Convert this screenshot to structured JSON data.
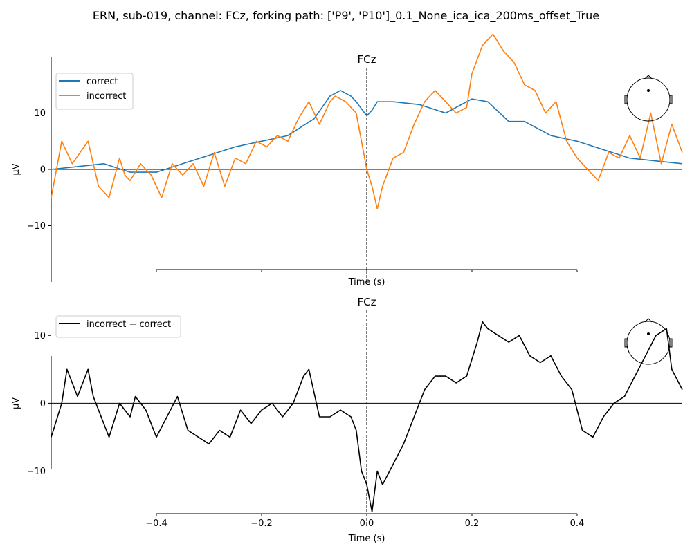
{
  "figure": {
    "suptitle": "ERN, sub-019, channel: FCz, forking path: ['P9', 'P10']_0.1_None_ica_ica_200ms_offset_True"
  },
  "chart_data": [
    {
      "type": "line",
      "title": "FCz",
      "xlabel": "Time (s)",
      "ylabel": "µV",
      "xlim": [
        -0.6,
        0.6
      ],
      "ylim": [
        -20,
        20
      ],
      "xticks": [
        -0.4,
        -0.2,
        0.0,
        0.2,
        0.4
      ],
      "xticklabels": [],
      "yticks": [
        -10,
        0,
        10
      ],
      "yticklabels": [
        "−10",
        "0",
        "10"
      ],
      "legend": "top-left",
      "markers": [
        "zero-line",
        "vertical-dashed-at-0"
      ],
      "inset": "head-sensor-map",
      "series": [
        {
          "name": "correct",
          "color": "#1f77b4",
          "x": [
            -0.6,
            -0.55,
            -0.5,
            -0.45,
            -0.4,
            -0.35,
            -0.3,
            -0.25,
            -0.2,
            -0.15,
            -0.1,
            -0.07,
            -0.05,
            -0.03,
            -0.02,
            0.0,
            0.01,
            0.02,
            0.05,
            0.1,
            0.15,
            0.2,
            0.23,
            0.27,
            0.3,
            0.35,
            0.4,
            0.45,
            0.5,
            0.55,
            0.6
          ],
          "values": [
            0.0,
            0.5,
            1.0,
            -0.5,
            -0.5,
            1.0,
            2.5,
            4.0,
            5.0,
            6.0,
            9.0,
            13.0,
            14.0,
            13.0,
            12.0,
            9.5,
            10.5,
            12.0,
            12.0,
            11.5,
            10.0,
            12.5,
            12.0,
            8.5,
            8.5,
            6.0,
            5.0,
            3.5,
            2.0,
            1.5,
            1.0
          ]
        },
        {
          "name": "incorrect",
          "color": "#ff7f0e",
          "x": [
            -0.6,
            -0.58,
            -0.56,
            -0.53,
            -0.51,
            -0.49,
            -0.47,
            -0.46,
            -0.45,
            -0.43,
            -0.41,
            -0.39,
            -0.37,
            -0.35,
            -0.33,
            -0.31,
            -0.29,
            -0.27,
            -0.25,
            -0.23,
            -0.21,
            -0.19,
            -0.17,
            -0.15,
            -0.13,
            -0.11,
            -0.09,
            -0.07,
            -0.06,
            -0.04,
            -0.02,
            -0.01,
            0.0,
            0.01,
            0.02,
            0.03,
            0.05,
            0.07,
            0.09,
            0.11,
            0.13,
            0.15,
            0.17,
            0.19,
            0.2,
            0.22,
            0.24,
            0.26,
            0.28,
            0.3,
            0.32,
            0.34,
            0.36,
            0.38,
            0.4,
            0.42,
            0.44,
            0.46,
            0.48,
            0.5,
            0.52,
            0.54,
            0.56,
            0.58,
            0.6
          ],
          "values": [
            -5.0,
            5.0,
            1.0,
            5.0,
            -3.0,
            -5.0,
            2.0,
            -1.0,
            -2.0,
            1.0,
            -1.0,
            -5.0,
            1.0,
            -1.0,
            1.0,
            -3.0,
            3.0,
            -3.0,
            2.0,
            1.0,
            5.0,
            4.0,
            6.0,
            5.0,
            9.0,
            12.0,
            8.0,
            12.0,
            13.0,
            12.0,
            10.0,
            5.0,
            0.0,
            -3.0,
            -7.0,
            -3.0,
            2.0,
            3.0,
            8.0,
            12.0,
            14.0,
            12.0,
            10.0,
            11.0,
            17.0,
            22.0,
            24.0,
            21.0,
            19.0,
            15.0,
            14.0,
            10.0,
            12.0,
            5.0,
            2.0,
            0.0,
            -2.0,
            3.0,
            2.0,
            6.0,
            2.0,
            10.0,
            1.0,
            8.0,
            3.0
          ]
        }
      ]
    },
    {
      "type": "line",
      "title": "FCz",
      "xlabel": "Time (s)",
      "ylabel": "µV",
      "xlim": [
        -0.6,
        0.6
      ],
      "ylim": [
        -18,
        14
      ],
      "xticks": [
        -0.4,
        -0.2,
        0.0,
        0.2,
        0.4
      ],
      "xticklabels": [
        "−0.4",
        "−0.2",
        "0.0",
        "0.2",
        "0.4"
      ],
      "yticks": [
        -10,
        0,
        10
      ],
      "yticklabels": [
        "−10",
        "0",
        "10"
      ],
      "legend": "top-left",
      "markers": [
        "zero-line",
        "vertical-dashed-at-0"
      ],
      "inset": "head-sensor-map",
      "series": [
        {
          "name": "incorrect − correct",
          "color": "#000000",
          "x": [
            -0.6,
            -0.58,
            -0.57,
            -0.56,
            -0.55,
            -0.53,
            -0.52,
            -0.5,
            -0.49,
            -0.47,
            -0.45,
            -0.44,
            -0.42,
            -0.4,
            -0.38,
            -0.36,
            -0.34,
            -0.32,
            -0.3,
            -0.28,
            -0.26,
            -0.24,
            -0.22,
            -0.2,
            -0.18,
            -0.16,
            -0.14,
            -0.12,
            -0.11,
            -0.09,
            -0.07,
            -0.05,
            -0.03,
            -0.02,
            -0.01,
            0.0,
            0.01,
            0.02,
            0.03,
            0.05,
            0.07,
            0.09,
            0.11,
            0.13,
            0.15,
            0.17,
            0.19,
            0.21,
            0.22,
            0.23,
            0.25,
            0.27,
            0.29,
            0.31,
            0.33,
            0.35,
            0.37,
            0.39,
            0.41,
            0.43,
            0.45,
            0.47,
            0.49,
            0.51,
            0.53,
            0.55,
            0.57,
            0.58,
            0.6
          ],
          "values": [
            -5.0,
            0.0,
            5.0,
            3.0,
            1.0,
            5.0,
            1.0,
            -3.0,
            -5.0,
            0.0,
            -2.0,
            1.0,
            -1.0,
            -5.0,
            -2.0,
            1.0,
            -4.0,
            -5.0,
            -6.0,
            -4.0,
            -5.0,
            -1.0,
            -3.0,
            -1.0,
            0.0,
            -2.0,
            0.0,
            4.0,
            5.0,
            -2.0,
            -2.0,
            -1.0,
            -2.0,
            -4.0,
            -10.0,
            -12.0,
            -16.0,
            -10.0,
            -12.0,
            -9.0,
            -6.0,
            -2.0,
            2.0,
            4.0,
            4.0,
            3.0,
            4.0,
            9.0,
            12.0,
            11.0,
            10.0,
            9.0,
            10.0,
            7.0,
            6.0,
            7.0,
            4.0,
            2.0,
            -4.0,
            -5.0,
            -2.0,
            0.0,
            1.0,
            4.0,
            7.0,
            10.0,
            11.0,
            5.0,
            2.0
          ]
        }
      ]
    }
  ]
}
